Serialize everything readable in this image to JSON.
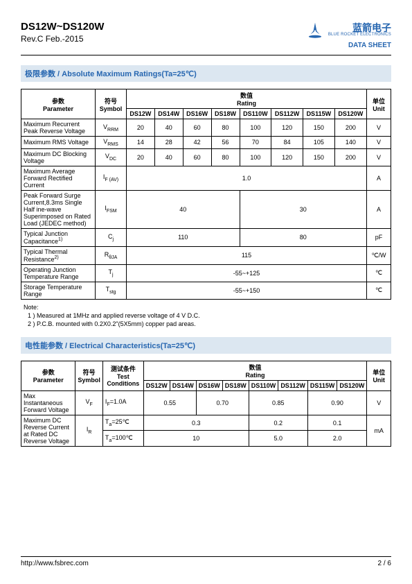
{
  "header": {
    "title": "DS12W~DS120W",
    "revision": "Rev.C Feb.-2015",
    "logo_cn": "蓝箭电子",
    "logo_en": "BLUE ROCKET ELECTRONICS",
    "datasheet": "DATA SHEET"
  },
  "section1": {
    "title_cn": "极限参数",
    "title_sep": " / ",
    "title_en": "Absolute Maximum Ratings(Ta=25℃)",
    "columns": {
      "parameter_cn": "参数",
      "parameter_en": "Parameter",
      "symbol_cn": "符号",
      "symbol_en": "Symbol",
      "rating_cn": "数值",
      "rating_en": "Rating",
      "unit_cn": "单位",
      "unit_en": "Unit"
    },
    "models": [
      "DS12W",
      "DS14W",
      "DS16W",
      "DS18W",
      "DS110W",
      "DS112W",
      "DS115W",
      "DS120W"
    ],
    "rows": [
      {
        "param": "Maximum Recurrent Peak Reverse Voltage",
        "symbol": "V",
        "sub": "RRM",
        "vals": [
          "20",
          "40",
          "60",
          "80",
          "100",
          "120",
          "150",
          "200"
        ],
        "unit": "V"
      },
      {
        "param": "Maximum RMS Voltage",
        "symbol": "V",
        "sub": "RMS",
        "vals": [
          "14",
          "28",
          "42",
          "56",
          "70",
          "84",
          "105",
          "140"
        ],
        "unit": "V"
      },
      {
        "param": "Maximum DC Blocking Voltage",
        "symbol": "V",
        "sub": "DC",
        "vals": [
          "20",
          "40",
          "60",
          "80",
          "100",
          "120",
          "150",
          "200"
        ],
        "unit": "V"
      },
      {
        "param": "Maximum Average Forward Rectified Current",
        "symbol": "I",
        "sub": "F (AV)",
        "span": "1.0",
        "unit": "A"
      },
      {
        "param": "Peak Forward Surge Current,8.3ms Single Half ine-wave Superimposed on Rated Load (JEDEC method)",
        "symbol": "I",
        "sub": "FSM",
        "span4a": "40",
        "span4b": "30",
        "unit": "A"
      },
      {
        "param": "Typical Junction Capacitance",
        "sup": "1)",
        "symbol": "C",
        "sub": "j",
        "span4a": "110",
        "span4b": "80",
        "unit": "pF"
      },
      {
        "param": "Typical Thermal Resistance",
        "sup": "2)",
        "symbol": "R",
        "sub": "θJA",
        "span": "115",
        "unit": "℃/W"
      },
      {
        "param": "Operating Junction Temperature Range",
        "symbol": "T",
        "sub": "j",
        "span": "-55~+125",
        "unit": "℃"
      },
      {
        "param": "Storage Temperature Range",
        "symbol": "T",
        "sub": "stg",
        "span": "-55~+150",
        "unit": "℃"
      }
    ],
    "note_label": "Note:",
    "notes": [
      "1 ) Measured at 1MHz and applied reverse voltage of 4 V D.C.",
      "2 ) P.C.B. mounted with 0.2X0.2\"(5X5mm) copper pad areas."
    ]
  },
  "section2": {
    "title_cn": "电性能参数",
    "title_sep": " / ",
    "title_en": "Electrical Characteristics(Ta=25℃)",
    "columns": {
      "parameter_cn": "参数",
      "parameter_en": "Parameter",
      "symbol_cn": "符号",
      "symbol_en": "Symbol",
      "cond_cn": "测试条件",
      "cond_en": "Test Conditions",
      "rating_cn": "数值",
      "rating_en": "Rating",
      "unit_cn": "单位",
      "unit_en": "Unit"
    },
    "models": [
      "DS12W",
      "DS14W",
      "DS16W",
      "DS18W",
      "DS110W",
      "DS112W",
      "DS115W",
      "DS120W"
    ],
    "row_vf": {
      "param": "Max Instantaneous Forward Voltage",
      "sym": "V",
      "sub": "F",
      "cond_sym": "I",
      "cond_sub": "F",
      "cond_val": "=1.0A",
      "v": [
        "0.55",
        "0.70",
        "0.85",
        "0.90"
      ],
      "unit": "V"
    },
    "row_ir": {
      "param": "Maximum DC Reverse Current at Rated DC Reverse Voltage",
      "sym": "I",
      "sub": "R",
      "conds": [
        "=25℃",
        "=100℃"
      ],
      "cond_sym": "T",
      "cond_sub": "a",
      "v25": [
        "0.3",
        "0.2",
        "0.1"
      ],
      "v100": [
        "10",
        "5.0",
        "2.0"
      ],
      "unit": "mA"
    }
  },
  "footer": {
    "url": "http://www.fsbrec.com",
    "page": "2 / 6"
  },
  "colors": {
    "brand": "#2666b0",
    "section_bg": "#dce7f1"
  }
}
